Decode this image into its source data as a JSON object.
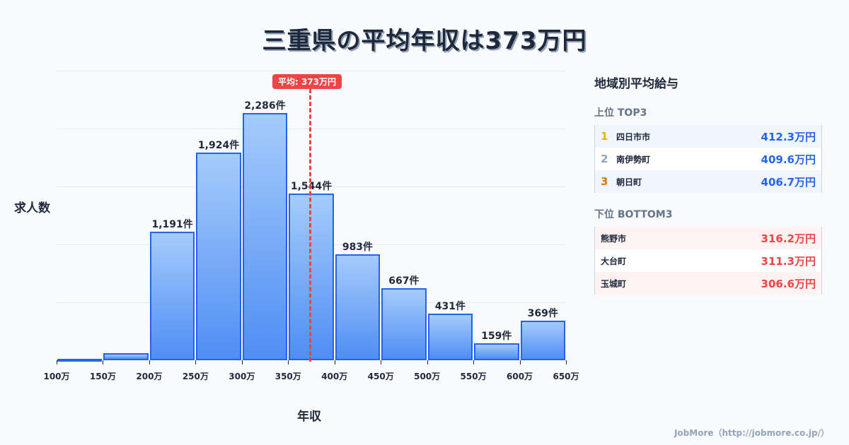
{
  "title": "三重県の平均年収は373万円",
  "chart_data": {
    "type": "bar",
    "title": "三重県の平均年収は373万円",
    "xlabel": "年収",
    "ylabel": "求人数",
    "categories": [
      "100-150万",
      "150-200万",
      "200-250万",
      "250-300万",
      "300-350万",
      "350-400万",
      "400-450万",
      "450-500万",
      "500-550万",
      "550-600万",
      "600-650万"
    ],
    "values": [
      2,
      65,
      1191,
      1924,
      2286,
      1544,
      983,
      667,
      431,
      159,
      369
    ],
    "value_labels": [
      "",
      "",
      "1,191件",
      "1,924件",
      "2,286件",
      "1,544件",
      "983件",
      "667件",
      "431件",
      "159件",
      "369件"
    ],
    "x_ticks": [
      "100万",
      "150万",
      "200万",
      "250万",
      "300万",
      "350万",
      "400万",
      "450万",
      "500万",
      "550万",
      "600万",
      "650万"
    ],
    "ylim": [
      0,
      2680
    ],
    "grid": true,
    "average_line": {
      "value": 373,
      "label": "平均: 373万円",
      "color": "#ef4444"
    },
    "bar_color": "#4f8ef4",
    "bar_border": "#2563eb"
  },
  "panel": {
    "title": "地域別平均給与",
    "top_title": "上位 TOP3",
    "top": [
      {
        "rank": "1",
        "name": "四日市市",
        "value": "412.3万円",
        "rank_color": "#eab308"
      },
      {
        "rank": "2",
        "name": "南伊勢町",
        "value": "409.6万円",
        "rank_color": "#94a3b8"
      },
      {
        "rank": "3",
        "name": "朝日町",
        "value": "406.7万円",
        "rank_color": "#d97706"
      }
    ],
    "bottom_title": "下位 BOTTOM3",
    "bottom": [
      {
        "name": "熊野市",
        "value": "316.2万円"
      },
      {
        "name": "大台町",
        "value": "311.3万円"
      },
      {
        "name": "玉城町",
        "value": "306.6万円"
      }
    ]
  },
  "footer": "JobMore（http://jobmore.co.jp/）"
}
